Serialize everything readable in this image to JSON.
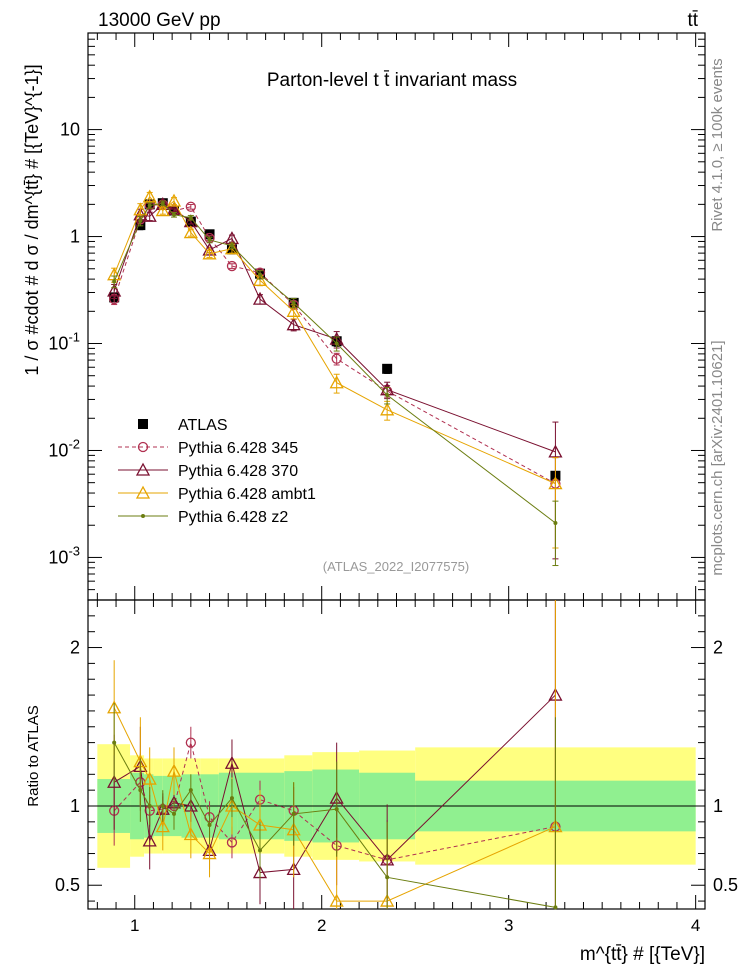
{
  "header": {
    "left": "13000 GeV pp",
    "right": "tt̄"
  },
  "side_label_top": "Rivet 4.1.0, ≥ 100k events",
  "side_label_bottom": "mcplots.cern.ch [arXiv:2401.10621]",
  "chart_data": {
    "type": "scatter",
    "title": "Parton-level t t̄ invariant mass",
    "analysis_tag": "(ATLAS_2022_I2077575)",
    "xlabel": "m^{tt̄} # [{TeV}]",
    "ylabel": "1 / σ #cdot # d σ / dm^{tt̄} # [{TeV}^{-1}]",
    "ratio_ylabel": "Ratio to ATLAS",
    "xlim": [
      0.75,
      4.05
    ],
    "ylim": [
      0.0004,
      80
    ],
    "ylog": true,
    "ratio_ylim": [
      0.35,
      2.3
    ],
    "x_ticks": [
      "1",
      "2",
      "3",
      "4"
    ],
    "y_ticks": [
      "10^-3",
      "10^-2",
      "10^-1",
      "1",
      "10"
    ],
    "ratio_ticks": [
      "0.5",
      "1",
      "2"
    ],
    "bins": [
      [
        0.8,
        0.975
      ],
      [
        0.975,
        1.05
      ],
      [
        1.05,
        1.1
      ],
      [
        1.1,
        1.15
      ],
      [
        1.15,
        1.25
      ],
      [
        1.25,
        1.35
      ],
      [
        1.35,
        1.45
      ],
      [
        1.45,
        1.55
      ],
      [
        1.55,
        1.8
      ],
      [
        1.8,
        1.95
      ],
      [
        1.95,
        2.2
      ],
      [
        2.2,
        2.5
      ],
      [
        2.5,
        4.0
      ]
    ],
    "x": [
      0.89,
      1.03,
      1.08,
      1.15,
      1.21,
      1.3,
      1.4,
      1.52,
      1.67,
      1.85,
      2.08,
      2.35,
      3.25
    ],
    "series": [
      {
        "name": "ATLAS",
        "style": "data",
        "color": "#000000",
        "values": [
          0.27,
          1.28,
          2.0,
          2.05,
          1.75,
          1.38,
          1.05,
          0.76,
          0.45,
          0.24,
          0.105,
          0.058,
          0.0058
        ],
        "band_inner": [
          0.17,
          0.21,
          0.2,
          0.19,
          0.19,
          0.2,
          0.2,
          0.21,
          0.21,
          0.22,
          0.23,
          0.21,
          0.16
        ],
        "band_outer": [
          0.39,
          0.32,
          0.3,
          0.3,
          0.3,
          0.3,
          0.3,
          0.3,
          0.3,
          0.32,
          0.34,
          0.35,
          0.37
        ]
      },
      {
        "name": "Pythia 6.428 345",
        "style": "circle-dashed",
        "color": "#b03050",
        "values": [
          0.26,
          1.45,
          1.95,
          2.0,
          1.74,
          1.9,
          0.97,
          0.53,
          0.46,
          0.23,
          0.072,
          0.036,
          0.0049
        ],
        "ratio": [
          0.97,
          1.15,
          0.97,
          0.98,
          1.0,
          1.4,
          0.93,
          0.77,
          1.04,
          0.97,
          0.75,
          0.66,
          0.87
        ],
        "ratio_err": [
          0.22,
          0.18,
          0.1,
          0.08,
          0.08,
          0.1,
          0.1,
          0.1,
          0.12,
          0.15,
          0.25,
          0.25,
          1.5
        ]
      },
      {
        "name": "Pythia 6.428 370",
        "style": "triangle-solid",
        "color": "#7a1030",
        "values": [
          0.31,
          1.6,
          1.55,
          2.0,
          1.8,
          1.38,
          0.75,
          0.96,
          0.26,
          0.15,
          0.11,
          0.037,
          0.0097
        ],
        "ratio": [
          1.15,
          1.25,
          0.78,
          0.98,
          1.02,
          1.0,
          0.72,
          1.27,
          0.58,
          0.6,
          1.05,
          0.66,
          1.7
        ],
        "ratio_err": [
          0.3,
          0.25,
          0.18,
          0.1,
          0.1,
          0.1,
          0.12,
          0.15,
          0.2,
          0.25,
          0.35,
          0.35,
          1.8
        ]
      },
      {
        "name": "Pythia 6.428 ambt1",
        "style": "triangle-solid",
        "color": "#e6a400",
        "values": [
          0.44,
          1.78,
          2.35,
          1.75,
          2.15,
          1.09,
          0.69,
          0.77,
          0.39,
          0.2,
          0.043,
          0.024,
          0.0049
        ],
        "ratio": [
          1.62,
          1.28,
          1.17,
          0.87,
          1.22,
          0.82,
          0.7,
          1.0,
          0.88,
          0.85,
          0.4,
          0.4,
          0.87
        ],
        "ratio_err": [
          0.3,
          0.28,
          0.2,
          0.15,
          0.15,
          0.15,
          0.15,
          0.18,
          0.22,
          0.3,
          0.4,
          0.4,
          1.5
        ]
      },
      {
        "name": "Pythia 6.428 z2",
        "style": "dot-solid",
        "color": "#6b7d10",
        "values": [
          0.38,
          1.4,
          1.95,
          2.05,
          1.6,
          1.5,
          0.93,
          0.82,
          0.44,
          0.24,
          0.1,
          0.033,
          0.0021
        ],
        "ratio": [
          1.4,
          1.1,
          1.0,
          1.0,
          0.95,
          1.1,
          0.88,
          1.05,
          0.72,
          0.95,
          0.98,
          0.55,
          0.36
        ],
        "ratio_err": [
          0.25,
          0.2,
          0.12,
          0.1,
          0.1,
          0.1,
          0.12,
          0.12,
          0.18,
          0.2,
          0.3,
          0.35,
          1.2
        ]
      }
    ]
  }
}
